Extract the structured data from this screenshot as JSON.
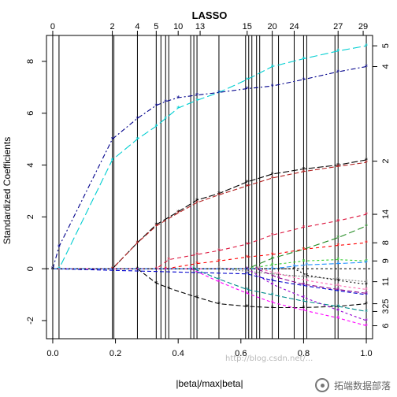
{
  "chart_data": {
    "type": "line",
    "title": "LASSO",
    "xlabel": "|beta|/max|beta|",
    "ylabel": "Standardized Coefficients",
    "xlim": [
      -0.02,
      1.02
    ],
    "ylim": [
      -2.7,
      9.0
    ],
    "x_ticks": [
      0.0,
      0.2,
      0.4,
      0.6,
      0.8,
      1.0
    ],
    "x_tick_labels": [
      "0.0",
      "0.2",
      "0.4",
      "0.6",
      "0.8",
      "1.0"
    ],
    "y_ticks": [
      -2,
      0,
      2,
      4,
      6,
      8
    ],
    "y_tick_labels": [
      "-2",
      "0",
      "2",
      "4",
      "6",
      "8"
    ],
    "top_axis": {
      "positions": [
        0.0,
        0.19,
        0.27,
        0.33,
        0.4,
        0.47,
        0.62,
        0.7,
        0.77,
        0.91,
        0.99
      ],
      "labels": [
        "0",
        "2",
        "4",
        "5",
        "10",
        "13",
        "15",
        "20",
        "24",
        "27",
        "29"
      ]
    },
    "step_lines": [
      0.0,
      0.02,
      0.19,
      0.195,
      0.27,
      0.33,
      0.345,
      0.36,
      0.37,
      0.44,
      0.45,
      0.46,
      0.53,
      0.615,
      0.625,
      0.635,
      0.65,
      0.66,
      0.7,
      0.72,
      0.77,
      0.8,
      0.81,
      0.9,
      0.91,
      1.0
    ],
    "right_axis": {
      "labels": [
        "5",
        "4",
        "2",
        "14",
        "8",
        "9",
        "11",
        "25",
        "3",
        "6"
      ],
      "values": [
        8.6,
        7.8,
        4.15,
        2.1,
        1.0,
        0.3,
        -0.5,
        -1.35,
        -1.65,
        -2.2
      ]
    },
    "grid": false,
    "series": [
      {
        "color": "#00CED1",
        "dash": "10,4",
        "x": [
          0.0,
          0.02,
          0.19,
          0.27,
          0.33,
          0.36,
          0.4,
          0.46,
          0.53,
          0.62,
          0.7,
          0.8,
          0.91,
          1.0
        ],
        "y": [
          0.0,
          0.0,
          4.2,
          5.0,
          5.5,
          5.8,
          6.2,
          6.5,
          6.8,
          7.3,
          7.8,
          8.1,
          8.4,
          8.6
        ]
      },
      {
        "color": "#00008B",
        "dash": "6,3,2,3",
        "x": [
          0.0,
          0.02,
          0.19,
          0.27,
          0.33,
          0.36,
          0.4,
          0.46,
          0.53,
          0.62,
          0.7,
          0.8,
          0.91,
          1.0
        ],
        "y": [
          0.0,
          0.85,
          5.0,
          5.8,
          6.3,
          6.45,
          6.6,
          6.7,
          6.8,
          6.95,
          7.05,
          7.3,
          7.6,
          7.8
        ]
      },
      {
        "color": "#000000",
        "dash": "8,3",
        "x": [
          0.0,
          0.19,
          0.27,
          0.33,
          0.4,
          0.46,
          0.53,
          0.62,
          0.7,
          0.8,
          0.91,
          1.0
        ],
        "y": [
          0.0,
          0.0,
          1.0,
          1.7,
          2.2,
          2.65,
          2.9,
          3.35,
          3.65,
          3.85,
          4.0,
          4.2
        ]
      },
      {
        "color": "#B22222",
        "dash": "6,3",
        "x": [
          0.0,
          0.19,
          0.27,
          0.33,
          0.4,
          0.46,
          0.53,
          0.62,
          0.7,
          0.8,
          0.91,
          1.0
        ],
        "y": [
          0.0,
          0.0,
          1.0,
          1.65,
          2.15,
          2.55,
          2.85,
          3.2,
          3.5,
          3.75,
          3.95,
          4.1
        ]
      },
      {
        "color": "#DC143C",
        "dash": "5,4",
        "x": [
          0.0,
          0.33,
          0.37,
          0.46,
          0.53,
          0.62,
          0.7,
          0.8,
          0.91,
          1.0
        ],
        "y": [
          0.0,
          0.0,
          0.35,
          0.55,
          0.7,
          0.95,
          1.3,
          1.6,
          1.85,
          2.1
        ]
      },
      {
        "color": "#228B22",
        "dash": "8,4",
        "x": [
          0.0,
          0.62,
          0.7,
          0.8,
          0.91,
          1.0
        ],
        "y": [
          0.0,
          0.0,
          0.4,
          0.75,
          1.2,
          1.65
        ]
      },
      {
        "color": "#FF0000",
        "dash": "4,4",
        "x": [
          0.0,
          0.36,
          0.46,
          0.53,
          0.62,
          0.7,
          0.8,
          0.91,
          1.0
        ],
        "y": [
          0.0,
          0.0,
          0.2,
          0.3,
          0.45,
          0.55,
          0.75,
          0.9,
          1.0
        ]
      },
      {
        "color": "#32CD32",
        "dash": "3,3",
        "x": [
          0.0,
          0.62,
          0.7,
          0.8,
          0.91,
          1.0
        ],
        "y": [
          0.0,
          0.0,
          0.15,
          0.3,
          0.35,
          0.3
        ]
      },
      {
        "color": "#808080",
        "dash": "2,2",
        "x": [
          0.0,
          0.53,
          0.62,
          0.7,
          0.8,
          0.91,
          1.0
        ],
        "y": [
          0.0,
          0.0,
          -0.1,
          -0.2,
          -0.3,
          -0.4,
          -0.5
        ]
      },
      {
        "color": "#000000",
        "dash": "6,3",
        "x": [
          0.0,
          0.27,
          0.33,
          0.37,
          0.46,
          0.53,
          0.62,
          0.7,
          0.8,
          0.91,
          1.0
        ],
        "y": [
          0.0,
          0.0,
          -0.55,
          -0.75,
          -1.1,
          -1.35,
          -1.45,
          -1.5,
          -1.5,
          -1.45,
          -1.35
        ]
      },
      {
        "color": "#008B8B",
        "dash": "6,3",
        "x": [
          0.0,
          0.45,
          0.53,
          0.62,
          0.7,
          0.8,
          0.91,
          1.0
        ],
        "y": [
          0.0,
          0.0,
          -0.4,
          -0.8,
          -1.0,
          -1.25,
          -1.45,
          -1.65
        ]
      },
      {
        "color": "#FF00FF",
        "dash": "4,3",
        "x": [
          0.0,
          0.44,
          0.53,
          0.62,
          0.7,
          0.8,
          0.91,
          1.0
        ],
        "y": [
          0.0,
          0.0,
          -0.5,
          -0.95,
          -1.3,
          -1.6,
          -1.9,
          -2.2
        ]
      },
      {
        "color": "#9400D3",
        "dash": "3,3",
        "x": [
          0.0,
          0.62,
          0.7,
          0.8,
          0.91,
          1.0
        ],
        "y": [
          0.0,
          0.0,
          -0.6,
          -1.1,
          -1.6,
          -2.0
        ]
      },
      {
        "color": "#0000CD",
        "dash": "5,3",
        "x": [
          0.0,
          0.62,
          0.7,
          0.8,
          0.91,
          1.0
        ],
        "y": [
          0.0,
          -0.2,
          -0.45,
          -0.65,
          -0.85,
          -1.0
        ]
      },
      {
        "color": "#8B008B",
        "dash": "6,3",
        "x": [
          0.0,
          0.65,
          0.72,
          0.8,
          0.91,
          1.0
        ],
        "y": [
          0.0,
          0.0,
          -0.35,
          -0.6,
          -0.8,
          -0.95
        ]
      },
      {
        "color": "#FF69B4",
        "dash": "3,3",
        "x": [
          0.0,
          0.66,
          0.72,
          0.81,
          0.91,
          1.0
        ],
        "y": [
          0.0,
          0.0,
          -0.2,
          -0.45,
          -0.65,
          -0.8
        ]
      },
      {
        "color": "#1E90FF",
        "dash": "6,3",
        "x": [
          0.0,
          0.7,
          0.77,
          0.81,
          0.91,
          1.0
        ],
        "y": [
          0.0,
          0.0,
          0.1,
          0.15,
          0.2,
          0.25
        ]
      },
      {
        "color": "#000000",
        "dash": "2,3",
        "x": [
          0.0,
          0.77,
          0.81,
          0.91,
          1.0
        ],
        "y": [
          0.0,
          0.0,
          -0.25,
          -0.45,
          -0.6
        ]
      }
    ]
  },
  "watermark": {
    "url": "http://blog.csdn.net/...",
    "brand": "拓端数据部落"
  }
}
